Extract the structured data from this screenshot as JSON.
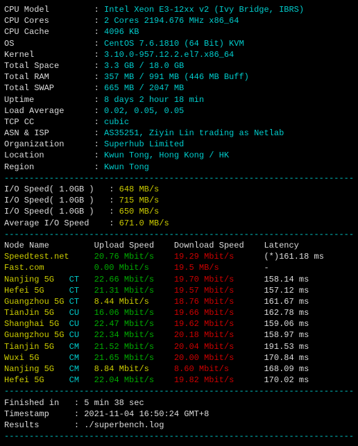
{
  "separator": "----------------------------------------------------------------------",
  "sysinfo": [
    {
      "label": "CPU Model",
      "value": "Intel Xeon E3-12xx v2 (Ivy Bridge, IBRS)"
    },
    {
      "label": "CPU Cores",
      "value": "2 Cores 2194.676 MHz x86_64"
    },
    {
      "label": "CPU Cache",
      "value": "4096 KB"
    },
    {
      "label": "OS",
      "value": "CentOS 7.6.1810 (64 Bit) KVM"
    },
    {
      "label": "Kernel",
      "value": "3.10.0-957.12.2.el7.x86_64"
    },
    {
      "label": "Total Space",
      "value": "3.3 GB / 18.0 GB"
    },
    {
      "label": "Total RAM",
      "value": "357 MB / 991 MB (446 MB Buff)"
    },
    {
      "label": "Total SWAP",
      "value": "665 MB / 2047 MB"
    },
    {
      "label": "Uptime",
      "value": "8 days 2 hour 18 min"
    },
    {
      "label": "Load Average",
      "value": "0.02, 0.05, 0.05"
    },
    {
      "label": "TCP CC",
      "value": "cubic"
    },
    {
      "label": "ASN & ISP",
      "value": "AS35251, Ziyin Lin trading as Netlab"
    },
    {
      "label": "Organization",
      "value": "Superhub Limited"
    },
    {
      "label": "Location",
      "value": "Kwun Tong, Hong Kong / HK"
    },
    {
      "label": "Region",
      "value": "Kwun Tong"
    }
  ],
  "iospeed": [
    {
      "label": "I/O Speed( 1.0GB )",
      "value": "648 MB/s"
    },
    {
      "label": "I/O Speed( 1.0GB )",
      "value": "715 MB/s"
    },
    {
      "label": "I/O Speed( 1.0GB )",
      "value": "650 MB/s"
    },
    {
      "label": "Average I/O Speed",
      "value": "671.0 MB/s"
    }
  ],
  "net_header": {
    "c1": "Node Name",
    "c2": "Upload Speed",
    "c3": "Download Speed",
    "c4": "Latency"
  },
  "net_rows": [
    {
      "name": "Speedtest.net",
      "tag": "",
      "up": "20.76 Mbit/s",
      "upc": "green",
      "down": "19.29 Mbit/s",
      "lat": "(*)161.18 ms"
    },
    {
      "name": "Fast.com",
      "tag": "",
      "up": "0.00 Mbit/s",
      "upc": "green",
      "down": "19.5 MB/s",
      "lat": "-"
    },
    {
      "name": "Nanjing 5G",
      "tag": "CT",
      "up": "22.66 Mbit/s",
      "upc": "green",
      "down": "19.70 Mbit/s",
      "lat": "158.14 ms"
    },
    {
      "name": "Hefei 5G",
      "tag": "CT",
      "up": "21.31 Mbit/s",
      "upc": "green",
      "down": "19.57 Mbit/s",
      "lat": "157.12 ms"
    },
    {
      "name": "Guangzhou 5G",
      "tag": "CT",
      "up": "8.44 Mbit/s",
      "upc": "yellow",
      "down": "18.76 Mbit/s",
      "lat": "161.67 ms"
    },
    {
      "name": "TianJin 5G",
      "tag": "CU",
      "up": "16.06 Mbit/s",
      "upc": "green",
      "down": "19.66 Mbit/s",
      "lat": "162.78 ms"
    },
    {
      "name": "Shanghai 5G",
      "tag": "CU",
      "up": "22.47 Mbit/s",
      "upc": "green",
      "down": "19.62 Mbit/s",
      "lat": "159.06 ms"
    },
    {
      "name": "Guangzhou 5G",
      "tag": "CU",
      "up": "22.34 Mbit/s",
      "upc": "green",
      "down": "20.18 Mbit/s",
      "lat": "158.97 ms"
    },
    {
      "name": "Tianjin 5G",
      "tag": "CM",
      "up": "21.52 Mbit/s",
      "upc": "green",
      "down": "20.04 Mbit/s",
      "lat": "191.53 ms"
    },
    {
      "name": "Wuxi 5G",
      "tag": "CM",
      "up": "21.65 Mbit/s",
      "upc": "green",
      "down": "20.00 Mbit/s",
      "lat": "170.84 ms"
    },
    {
      "name": "Nanjing 5G",
      "tag": "CM",
      "up": "8.84 Mbit/s",
      "upc": "yellow",
      "down": "8.60 Mbit/s",
      "lat": "168.09 ms"
    },
    {
      "name": "Hefei 5G",
      "tag": "CM",
      "up": "22.04 Mbit/s",
      "upc": "green",
      "down": "19.82 Mbit/s",
      "lat": "170.02 ms"
    }
  ],
  "footer": [
    {
      "label": "Finished in",
      "value": "5 min 38 sec"
    },
    {
      "label": "Timestamp",
      "value": "2021-11-04 16:50:24 GMT+8"
    },
    {
      "label": "Results",
      "value": "./superbench.log"
    }
  ],
  "colors": {
    "bg": "#000000",
    "cyan": "#00cccc",
    "red": "#cc0000",
    "green": "#00aa00",
    "yellow": "#cccc00",
    "white": "#dddddd"
  }
}
